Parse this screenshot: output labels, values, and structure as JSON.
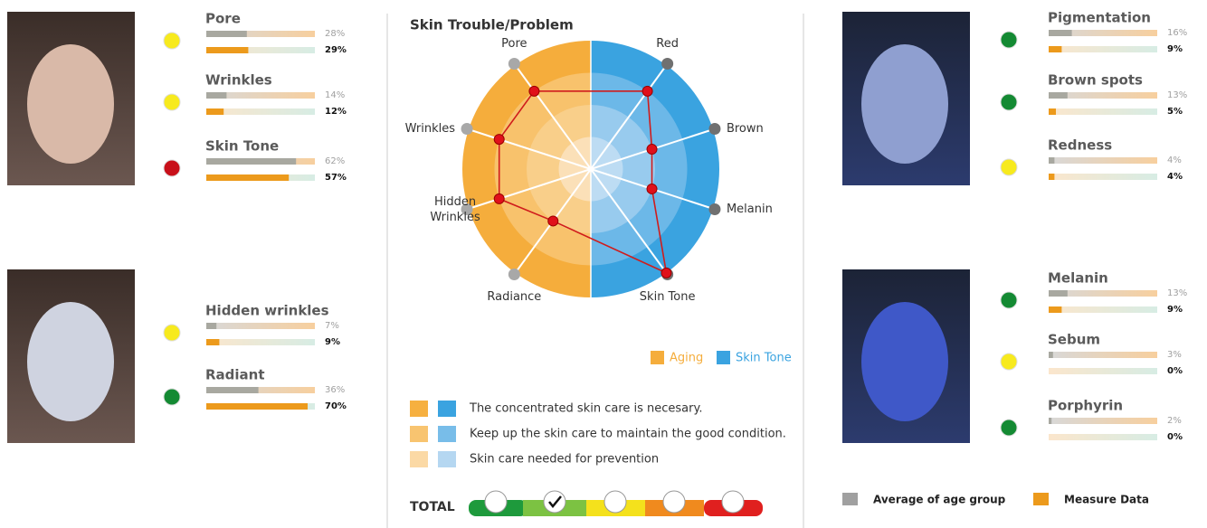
{
  "metrics_left": [
    {
      "name": "Pore",
      "status": "#f7ea1e",
      "average": {
        "value": 28,
        "label": "28%"
      },
      "measure": {
        "value": 29,
        "label": "29%"
      }
    },
    {
      "name": "Wrinkles",
      "status": "#f7ea1e",
      "average": {
        "value": 14,
        "label": "14%"
      },
      "measure": {
        "value": 12,
        "label": "12%"
      }
    },
    {
      "name": "Skin Tone",
      "status": "#c8101a",
      "average": {
        "value": 62,
        "label": "62%"
      },
      "measure": {
        "value": 57,
        "label": "57%"
      }
    },
    {
      "name": "Hidden wrinkles",
      "status": "#f7ea1e",
      "average": {
        "value": 7,
        "label": "7%"
      },
      "measure": {
        "value": 9,
        "label": "9%"
      }
    },
    {
      "name": "Radiant",
      "status": "#148a33",
      "average": {
        "value": 36,
        "label": "36%"
      },
      "measure": {
        "value": 70,
        "label": "70%"
      }
    }
  ],
  "metrics_right": [
    {
      "name": "Pigmentation",
      "status": "#148a33",
      "average": {
        "value": 16,
        "label": "16%"
      },
      "measure": {
        "value": 9,
        "label": "9%"
      }
    },
    {
      "name": "Brown spots",
      "status": "#148a33",
      "average": {
        "value": 13,
        "label": "13%"
      },
      "measure": {
        "value": 5,
        "label": "5%"
      }
    },
    {
      "name": "Redness",
      "status": "#f7ea1e",
      "average": {
        "value": 4,
        "label": "4%"
      },
      "measure": {
        "value": 4,
        "label": "4%"
      }
    },
    {
      "name": "Melanin",
      "status": "#148a33",
      "average": {
        "value": 13,
        "label": "13%"
      },
      "measure": {
        "value": 9,
        "label": "9%"
      }
    },
    {
      "name": "Sebum",
      "status": "#f7ea1e",
      "average": {
        "value": 3,
        "label": "3%"
      },
      "measure": {
        "value": 0,
        "label": "0%"
      }
    },
    {
      "name": "Porphyrin",
      "status": "#148a33",
      "average": {
        "value": 2,
        "label": "2%"
      },
      "measure": {
        "value": 0,
        "label": "0%"
      }
    }
  ],
  "radar": {
    "title": "Skin Trouble/Problem",
    "rlim": [
      0,
      4
    ],
    "axes": [
      {
        "label": "Red",
        "value": 3
      },
      {
        "label": "Brown",
        "value": 2
      },
      {
        "label": "Melanin",
        "value": 2
      },
      {
        "label": "Skin Tone",
        "value": 4
      },
      {
        "label": "Radiance",
        "value": 2
      },
      {
        "label": "Hidden\nWrinkles",
        "value": 3
      },
      {
        "label": "Wrinkles",
        "value": 3
      },
      {
        "label": "Pore",
        "value": 3
      }
    ],
    "legend": [
      {
        "name": "Aging",
        "color": "#f5ad3c"
      },
      {
        "name": "Skin Tone",
        "color": "#3aa3e0"
      }
    ]
  },
  "care_key": [
    "The concentrated skin care is necesary.",
    "Keep up the skin care to maintain the good condition.",
    "Skin care needed for prevention"
  ],
  "total": {
    "label": "TOTAL",
    "level": 2
  },
  "bar_legend": [
    {
      "name": "Average of age group",
      "color": "#a0a0a0"
    },
    {
      "name": "Measure Data",
      "color": "#ec9a1c"
    }
  ]
}
